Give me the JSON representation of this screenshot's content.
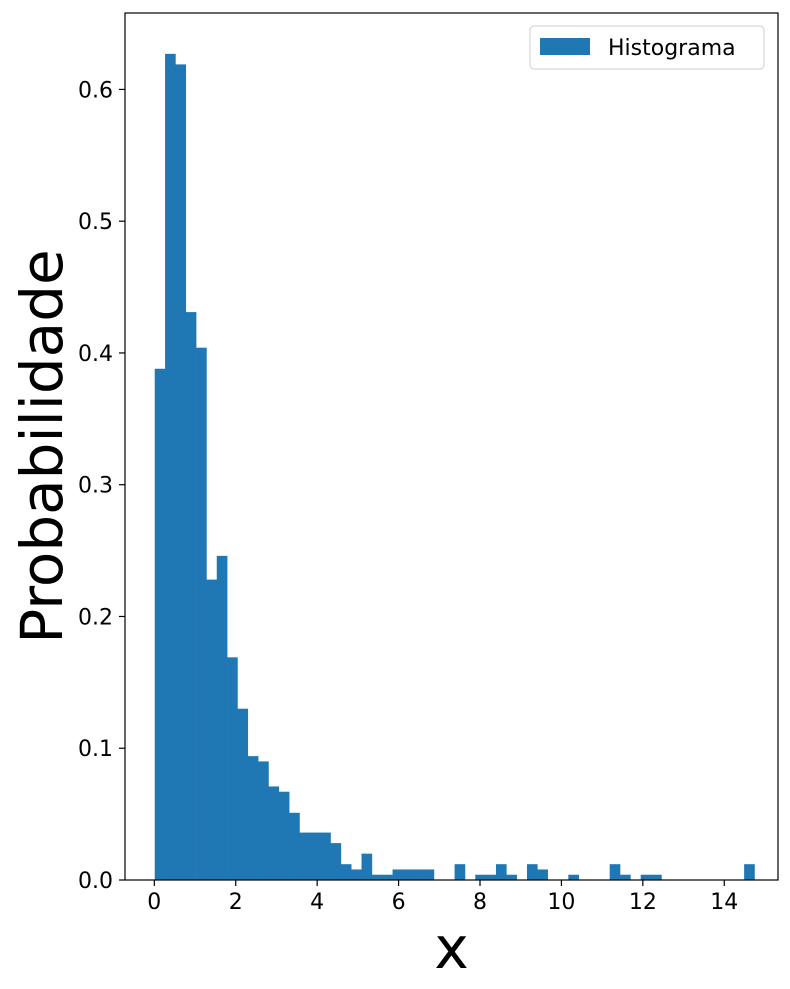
{
  "chart_data": {
    "type": "bar",
    "title": "",
    "xlabel": "x",
    "ylabel": "Probabilidade",
    "xlim": [
      -0.72,
      15.32
    ],
    "ylim": [
      0.0,
      0.658
    ],
    "xticks": [
      0,
      2,
      4,
      6,
      8,
      10,
      12,
      14
    ],
    "yticks": [
      0.0,
      0.1,
      0.2,
      0.3,
      0.4,
      0.5,
      0.6
    ],
    "xtick_labels": [
      "0",
      "2",
      "4",
      "6",
      "8",
      "10",
      "12",
      "14"
    ],
    "ytick_labels": [
      "0.0",
      "0.1",
      "0.2",
      "0.3",
      "0.4",
      "0.5",
      "0.6"
    ],
    "grid": false,
    "legend": {
      "position": "top-right",
      "entries": [
        "Histograma"
      ]
    },
    "bin_width": 0.254,
    "bin_start": 0.01,
    "series": [
      {
        "name": "Histograma",
        "color": "#1f77b4",
        "values": [
          0.388,
          0.627,
          0.619,
          0.431,
          0.404,
          0.228,
          0.246,
          0.169,
          0.13,
          0.094,
          0.09,
          0.071,
          0.067,
          0.051,
          0.036,
          0.036,
          0.036,
          0.028,
          0.012,
          0.008,
          0.02,
          0.004,
          0.004,
          0.008,
          0.008,
          0.008,
          0.008,
          0.0,
          0.0,
          0.012,
          0.0,
          0.004,
          0.004,
          0.012,
          0.004,
          0.0,
          0.012,
          0.008,
          0.0,
          0.0,
          0.004,
          0.0,
          0.0,
          0.0,
          0.012,
          0.004,
          0.0,
          0.004,
          0.004,
          0.0,
          0.0,
          0.0,
          0.0,
          0.0,
          0.0,
          0.0,
          0.0,
          0.012
        ]
      }
    ]
  }
}
